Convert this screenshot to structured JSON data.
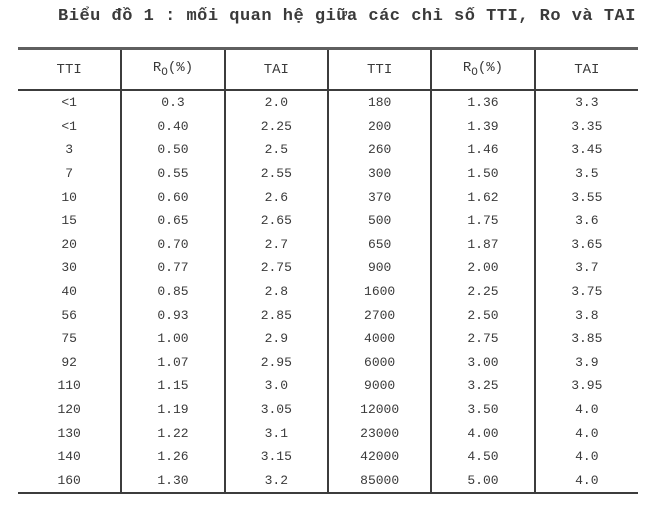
{
  "title": "Biểu đồ 1 : mối quan hệ giữa các chỉ số TTI, Ro và TAI",
  "table": {
    "headers": [
      {
        "text": "TTI"
      },
      {
        "pre": "R",
        "sub": "O",
        "post": "(%)"
      },
      {
        "text": "TAI"
      },
      {
        "text": "TTI"
      },
      {
        "pre": "R",
        "sub": "O",
        "post": "(%)"
      },
      {
        "text": "TAI"
      }
    ],
    "rows": [
      [
        "<1",
        "0.3",
        "2.0",
        "180",
        "1.36",
        "3.3"
      ],
      [
        "<1",
        "0.40",
        "2.25",
        "200",
        "1.39",
        "3.35"
      ],
      [
        "3",
        "0.50",
        "2.5",
        "260",
        "1.46",
        "3.45"
      ],
      [
        "7",
        "0.55",
        "2.55",
        "300",
        "1.50",
        "3.5"
      ],
      [
        "10",
        "0.60",
        "2.6",
        "370",
        "1.62",
        "3.55"
      ],
      [
        "15",
        "0.65",
        "2.65",
        "500",
        "1.75",
        "3.6"
      ],
      [
        "20",
        "0.70",
        "2.7",
        "650",
        "1.87",
        "3.65"
      ],
      [
        "30",
        "0.77",
        "2.75",
        "900",
        "2.00",
        "3.7"
      ],
      [
        "40",
        "0.85",
        "2.8",
        "1600",
        "2.25",
        "3.75"
      ],
      [
        "56",
        "0.93",
        "2.85",
        "2700",
        "2.50",
        "3.8"
      ],
      [
        "75",
        "1.00",
        "2.9",
        "4000",
        "2.75",
        "3.85"
      ],
      [
        "92",
        "1.07",
        "2.95",
        "6000",
        "3.00",
        "3.9"
      ],
      [
        "110",
        "1.15",
        "3.0",
        "9000",
        "3.25",
        "3.95"
      ],
      [
        "120",
        "1.19",
        "3.05",
        "12000",
        "3.50",
        "4.0"
      ],
      [
        "130",
        "1.22",
        "3.1",
        "23000",
        "4.00",
        "4.0"
      ],
      [
        "140",
        "1.26",
        "3.15",
        "42000",
        "4.50",
        "4.0"
      ],
      [
        "160",
        "1.30",
        "3.2",
        "85000",
        "5.00",
        "4.0"
      ]
    ]
  },
  "colors": {
    "text": "#3a3a3a",
    "border_thin": "#3c3c3c",
    "border_top": "#5f5f5f",
    "background": "#ffffff"
  }
}
